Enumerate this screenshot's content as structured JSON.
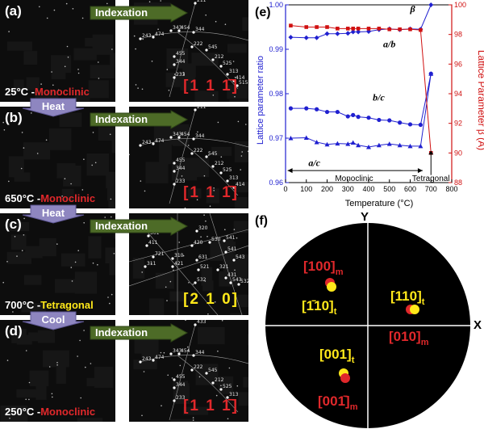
{
  "panels": [
    {
      "label": "(a)",
      "temperature": "25°C -",
      "phase": "Monoclinic",
      "phase_color": "red",
      "zone_axis": "[1 1 1̄]",
      "zone_color": "red",
      "indexation": "Indexation",
      "spots": [
        "211",
        "243",
        "474",
        "343",
        "454",
        "344",
        "222",
        "545",
        "212",
        "525",
        "313",
        "414",
        "515",
        "455",
        "344",
        "233"
      ]
    },
    {
      "label": "(b)",
      "temperature": "650°C -",
      "phase": "Monoclinic",
      "phase_color": "red",
      "zone_axis": "[1 1 1̄]",
      "zone_color": "red",
      "indexation": "Indexation",
      "spots": [
        "211",
        "243",
        "474",
        "343",
        "454",
        "344",
        "222",
        "545",
        "212",
        "525",
        "313",
        "414",
        "455",
        "344",
        "233"
      ]
    },
    {
      "label": "(c)",
      "temperature": "700°C -",
      "phase": "Tetragonal",
      "phase_color": "yellow",
      "zone_axis": "[2 1 0]",
      "zone_color": "yellow",
      "indexation": "Indexation",
      "spots": [
        "301",
        "411",
        "320",
        "721",
        "420",
        "530",
        "541",
        "310",
        "631",
        "541",
        "311",
        "421",
        "543",
        "521",
        "321",
        "431",
        "532",
        "532",
        "543"
      ]
    },
    {
      "label": "(d)",
      "temperature": "250°C -",
      "phase": "Monoclinic",
      "phase_color": "red",
      "zone_axis": "[1 1 1̄]",
      "zone_color": "red",
      "indexation": "Indexation",
      "spots": [
        "433",
        "243",
        "474",
        "343",
        "454",
        "344",
        "222",
        "545",
        "212",
        "525",
        "313",
        "455",
        "344",
        "233"
      ]
    }
  ],
  "transitions": [
    "Heat",
    "Heat",
    "Cool"
  ],
  "chart_data": {
    "type": "line",
    "panel_label": "(e)",
    "xlabel": "Temperature (°C)",
    "ylabel_left": "Lattice parameter ratio",
    "ylabel_right": "Lattice Parameter β (Å)",
    "xlim": [
      0,
      800
    ],
    "ylim_left": [
      0.96,
      1.0
    ],
    "ylim_right": [
      88,
      100
    ],
    "x_ticks": [
      "0",
      "100",
      "200",
      "300",
      "400",
      "500",
      "600",
      "700",
      "800"
    ],
    "y_ticks_left": [
      "0.96",
      "0.97",
      "0.98",
      "0.99",
      "1.00"
    ],
    "y_ticks_right": [
      "88",
      "90",
      "92",
      "94",
      "96",
      "98",
      "100"
    ],
    "colors": {
      "ratio": "#2020d0",
      "beta": "#d01010"
    },
    "series": [
      {
        "name": "a/b",
        "axis": "left",
        "marker": "diamond",
        "x": [
          25,
          100,
          150,
          200,
          250,
          300,
          325,
          350,
          400,
          450,
          500,
          550,
          600,
          650,
          700
        ],
        "y": [
          0.9927,
          0.9926,
          0.9926,
          0.9935,
          0.9935,
          0.9936,
          0.9939,
          0.9939,
          0.994,
          0.9944,
          0.9946,
          0.9944,
          0.9946,
          0.9945,
          1.0
        ]
      },
      {
        "name": "b/c",
        "axis": "left",
        "marker": "circle",
        "x": [
          25,
          100,
          150,
          200,
          250,
          300,
          325,
          350,
          400,
          450,
          500,
          550,
          600,
          650,
          700
        ],
        "y": [
          0.9767,
          0.9767,
          0.9765,
          0.9759,
          0.9759,
          0.9749,
          0.9752,
          0.9748,
          0.9746,
          0.9741,
          0.974,
          0.9735,
          0.9731,
          0.973,
          0.9845
        ]
      },
      {
        "name": "a/c",
        "axis": "left",
        "marker": "triangle",
        "x": [
          25,
          100,
          150,
          200,
          250,
          300,
          325,
          350,
          400,
          450,
          500,
          550,
          600,
          650,
          700
        ],
        "y": [
          0.97,
          0.9701,
          0.9691,
          0.9686,
          0.9688,
          0.9687,
          0.969,
          0.9684,
          0.968,
          0.9684,
          0.9687,
          0.9684,
          0.9682,
          0.9682,
          0.9845
        ]
      },
      {
        "name": "β",
        "axis": "right",
        "marker": "square",
        "x": [
          25,
          100,
          150,
          200,
          250,
          300,
          325,
          350,
          400,
          450,
          500,
          550,
          600,
          650,
          700
        ],
        "y": [
          98.6,
          98.5,
          98.5,
          98.5,
          98.4,
          98.4,
          98.4,
          98.4,
          98.4,
          98.4,
          98.35,
          98.35,
          98.35,
          98.3,
          90.0
        ]
      }
    ],
    "annotations": {
      "monoclinic": "Monoclinic",
      "tetragonal": "Tetragonal"
    }
  },
  "stereo": {
    "panel_label": "(f)",
    "y_axis": "Y",
    "x_axis": "X",
    "poles": [
      {
        "text": "[100]",
        "sub": "m",
        "color": "#e0282b",
        "marker": "red-over-yellow"
      },
      {
        "text": "[1̄10]",
        "sub": "t",
        "color": "#ffe81a"
      },
      {
        "text": "[110]",
        "sub": "t",
        "color": "#ffe81a",
        "marker": "red-yellow-side"
      },
      {
        "text": "[010]",
        "sub": "m",
        "color": "#e0282b"
      },
      {
        "text": "[001]",
        "sub": "t",
        "color": "#ffe81a",
        "marker": "yellow-over-red"
      },
      {
        "text": "[001̄]",
        "sub": "m",
        "color": "#e0282b"
      }
    ]
  }
}
